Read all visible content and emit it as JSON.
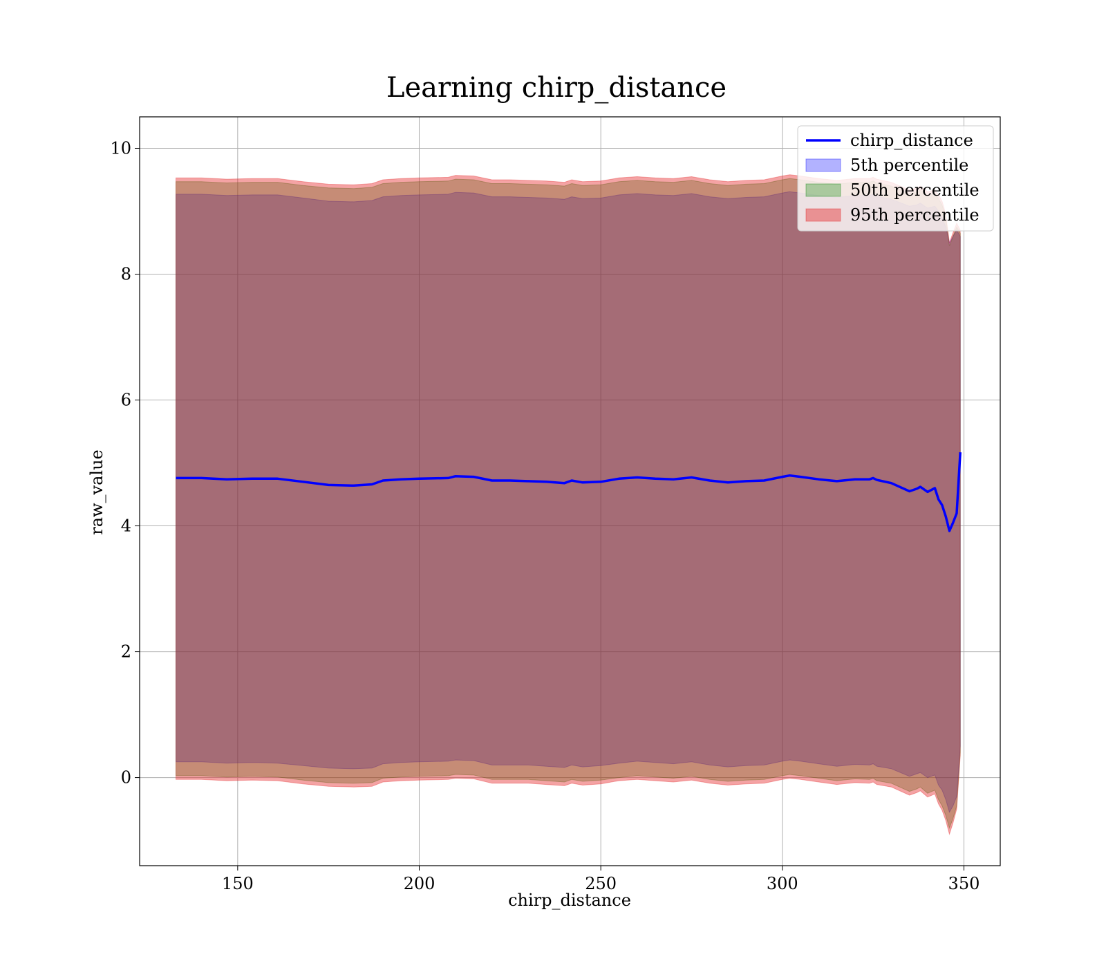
{
  "chart_data": {
    "type": "area",
    "title": "Learning chirp_distance",
    "xlabel": "chirp_distance",
    "ylabel": "raw_value",
    "xlim": [
      123,
      360
    ],
    "ylim": [
      -1.4,
      10.5
    ],
    "xticks": [
      150,
      200,
      250,
      300,
      350
    ],
    "yticks": [
      0,
      2,
      4,
      6,
      8,
      10
    ],
    "grid": true,
    "legend_position": "top-right",
    "x": [
      133,
      140,
      147,
      154,
      161,
      168,
      175,
      182,
      187,
      190,
      195,
      200,
      208,
      210,
      215,
      220,
      225,
      230,
      235,
      240,
      242,
      245,
      250,
      255,
      260,
      265,
      270,
      275,
      280,
      285,
      290,
      295,
      300,
      302,
      305,
      310,
      315,
      320,
      324,
      325,
      326,
      330,
      335,
      337,
      338,
      340,
      342,
      343,
      344,
      345,
      346,
      347,
      348,
      349
    ],
    "series": [
      {
        "name": "chirp_distance",
        "kind": "line",
        "color": "#0000ff",
        "values": [
          4.76,
          4.76,
          4.74,
          4.75,
          4.75,
          4.7,
          4.65,
          4.64,
          4.66,
          4.72,
          4.74,
          4.75,
          4.76,
          4.79,
          4.78,
          4.72,
          4.72,
          4.71,
          4.7,
          4.68,
          4.72,
          4.69,
          4.7,
          4.75,
          4.77,
          4.75,
          4.74,
          4.77,
          4.72,
          4.69,
          4.71,
          4.72,
          4.78,
          4.8,
          4.78,
          4.74,
          4.71,
          4.74,
          4.74,
          4.76,
          4.73,
          4.68,
          4.55,
          4.59,
          4.62,
          4.54,
          4.6,
          4.42,
          4.33,
          4.15,
          3.92,
          4.05,
          4.2,
          5.17
        ]
      },
      {
        "name": "5th percentile",
        "kind": "band",
        "color": "#0000ff",
        "opacity": 0.3,
        "lower": [
          0.25,
          0.25,
          0.23,
          0.24,
          0.23,
          0.19,
          0.15,
          0.14,
          0.15,
          0.22,
          0.24,
          0.25,
          0.26,
          0.28,
          0.27,
          0.2,
          0.2,
          0.2,
          0.18,
          0.16,
          0.2,
          0.17,
          0.19,
          0.23,
          0.26,
          0.24,
          0.22,
          0.25,
          0.2,
          0.17,
          0.19,
          0.2,
          0.26,
          0.28,
          0.26,
          0.22,
          0.18,
          0.21,
          0.2,
          0.22,
          0.18,
          0.14,
          0.02,
          0.06,
          0.08,
          0.0,
          0.04,
          -0.12,
          -0.2,
          -0.35,
          -0.55,
          -0.45,
          -0.3,
          0.5
        ],
        "upper": [
          9.27,
          9.27,
          9.25,
          9.26,
          9.26,
          9.21,
          9.16,
          9.15,
          9.17,
          9.23,
          9.25,
          9.26,
          9.27,
          9.3,
          9.29,
          9.23,
          9.23,
          9.22,
          9.21,
          9.19,
          9.23,
          9.2,
          9.21,
          9.26,
          9.28,
          9.26,
          9.25,
          9.28,
          9.23,
          9.2,
          9.22,
          9.23,
          9.29,
          9.31,
          9.29,
          9.25,
          9.22,
          9.25,
          9.25,
          9.27,
          9.24,
          9.19,
          9.08,
          9.1,
          9.13,
          9.05,
          9.08,
          9.0,
          8.9,
          8.75,
          8.5,
          8.6,
          8.7,
          8.6
        ]
      },
      {
        "name": "50th percentile",
        "kind": "band",
        "color": "#008000",
        "opacity": 0.3,
        "lower": [
          0.03,
          0.03,
          0.01,
          0.02,
          0.01,
          -0.04,
          -0.08,
          -0.09,
          -0.08,
          -0.01,
          0.01,
          0.02,
          0.03,
          0.05,
          0.04,
          -0.03,
          -0.03,
          -0.03,
          -0.05,
          -0.07,
          -0.03,
          -0.06,
          -0.04,
          0.0,
          0.03,
          0.01,
          -0.01,
          0.02,
          -0.03,
          -0.06,
          -0.04,
          -0.03,
          0.03,
          0.05,
          0.03,
          -0.01,
          -0.05,
          -0.02,
          -0.03,
          -0.01,
          -0.05,
          -0.09,
          -0.22,
          -0.18,
          -0.15,
          -0.25,
          -0.2,
          -0.35,
          -0.45,
          -0.6,
          -0.8,
          -0.65,
          -0.45,
          0.4
        ],
        "upper": [
          9.47,
          9.47,
          9.45,
          9.46,
          9.46,
          9.41,
          9.37,
          9.36,
          9.38,
          9.44,
          9.46,
          9.47,
          9.48,
          9.51,
          9.5,
          9.44,
          9.44,
          9.43,
          9.42,
          9.4,
          9.44,
          9.41,
          9.42,
          9.47,
          9.49,
          9.47,
          9.46,
          9.49,
          9.44,
          9.41,
          9.43,
          9.44,
          9.5,
          9.52,
          9.5,
          9.46,
          9.43,
          9.46,
          9.46,
          9.48,
          9.45,
          9.4,
          9.28,
          9.31,
          9.34,
          9.25,
          9.28,
          9.2,
          9.1,
          8.9,
          8.45,
          8.6,
          8.75,
          8.65
        ]
      },
      {
        "name": "95th percentile",
        "kind": "band",
        "color": "#e31a1c",
        "opacity": 0.4,
        "lower": [
          -0.03,
          -0.03,
          -0.05,
          -0.04,
          -0.05,
          -0.1,
          -0.14,
          -0.15,
          -0.14,
          -0.07,
          -0.05,
          -0.04,
          -0.03,
          -0.01,
          -0.02,
          -0.09,
          -0.09,
          -0.09,
          -0.11,
          -0.13,
          -0.09,
          -0.12,
          -0.1,
          -0.05,
          -0.03,
          -0.05,
          -0.07,
          -0.04,
          -0.09,
          -0.12,
          -0.1,
          -0.09,
          -0.03,
          -0.01,
          -0.03,
          -0.07,
          -0.11,
          -0.08,
          -0.09,
          -0.07,
          -0.11,
          -0.15,
          -0.28,
          -0.24,
          -0.21,
          -0.31,
          -0.26,
          -0.42,
          -0.52,
          -0.68,
          -0.9,
          -0.72,
          -0.5,
          0.35
        ],
        "upper": [
          9.53,
          9.53,
          9.51,
          9.52,
          9.52,
          9.47,
          9.43,
          9.42,
          9.44,
          9.5,
          9.52,
          9.53,
          9.54,
          9.57,
          9.56,
          9.5,
          9.5,
          9.49,
          9.48,
          9.46,
          9.5,
          9.47,
          9.48,
          9.53,
          9.55,
          9.53,
          9.52,
          9.55,
          9.5,
          9.47,
          9.49,
          9.5,
          9.56,
          9.58,
          9.56,
          9.52,
          9.49,
          9.52,
          9.52,
          9.54,
          9.51,
          9.46,
          9.34,
          9.37,
          9.4,
          9.31,
          9.34,
          9.26,
          9.16,
          8.96,
          8.5,
          8.66,
          8.81,
          8.7
        ]
      }
    ]
  }
}
